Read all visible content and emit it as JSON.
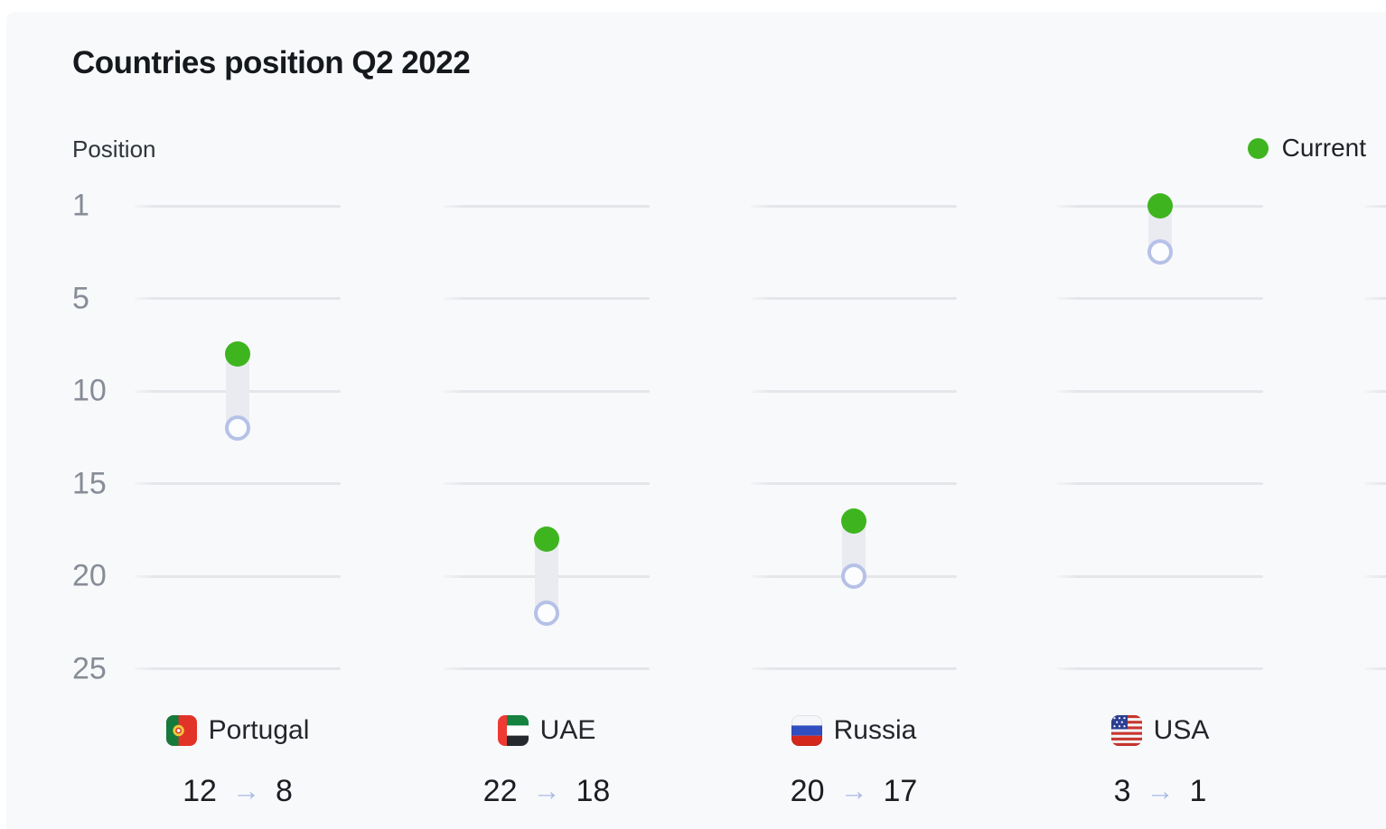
{
  "title": "Countries position Q2 2022",
  "axis": {
    "label": "Position",
    "ticks": [
      "1",
      "5",
      "10",
      "15",
      "20",
      "25"
    ]
  },
  "legend": {
    "items": [
      {
        "label": "Current",
        "marker": "current-dot"
      }
    ]
  },
  "arrow_glyph": "→",
  "colors": {
    "current_green": "#3eb51f",
    "previous_ring": "#b6c1e8",
    "previous_fill": "#fcfdff",
    "connector_bar": "#e9ebf0",
    "gridline": "#e4e6ea",
    "arrow": "#aab9e5",
    "panel_bg": "#f8f9fb"
  },
  "chart_data": {
    "type": "dumbbell",
    "title": "Countries position Q2 2022",
    "ylabel": "Position",
    "y_ticks": [
      1,
      5,
      10,
      15,
      20,
      25
    ],
    "y_axis_inverted": true,
    "grid": "per-column horizontal segments",
    "legend_position": "top-right",
    "legend_entries": [
      "Current"
    ],
    "series": [
      {
        "country": "Portugal",
        "flag": "portugal",
        "previous": 12,
        "current": 8,
        "label": "12 → 8"
      },
      {
        "country": "UAE",
        "flag": "uae",
        "previous": 22,
        "current": 18,
        "label": "22 → 18"
      },
      {
        "country": "Russia",
        "flag": "russia",
        "previous": 20,
        "current": 17,
        "label": "20 → 17"
      },
      {
        "country": "USA",
        "flag": "usa",
        "previous": 3,
        "current": 1,
        "label": "3 → 1"
      }
    ]
  }
}
